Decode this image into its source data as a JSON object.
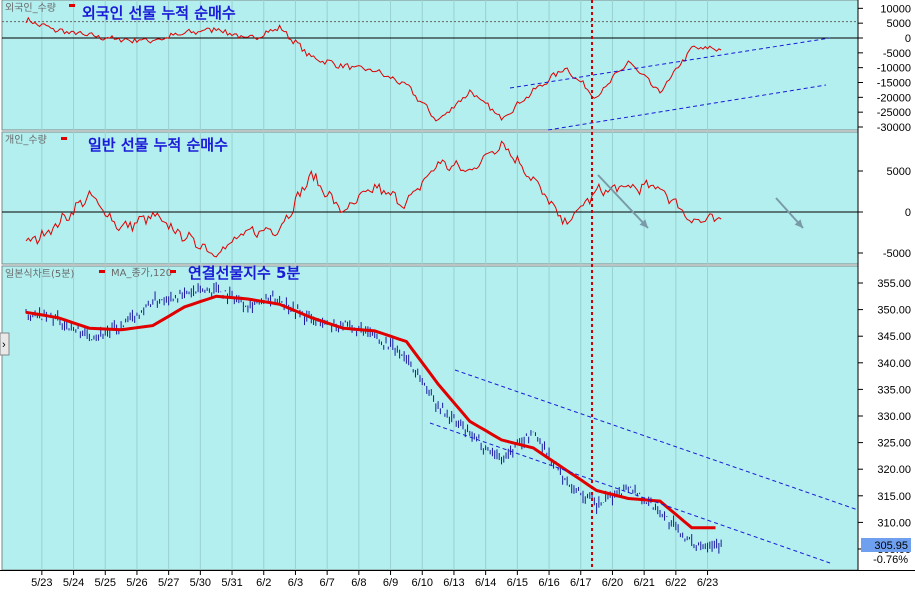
{
  "panels": [
    {
      "id": "foreign",
      "name_label": "외국인_수량",
      "title": "외국인 선물 누적 순매수",
      "y_ticks": [
        "10000",
        "5000",
        "0",
        "-5000",
        "-10000",
        "-15000",
        "-20000",
        "-25000",
        "-30000"
      ],
      "ylim": [
        -31000,
        11500
      ],
      "zero_line": 0,
      "dotted_ref": 5500
    },
    {
      "id": "individual",
      "name_label": "개인_수량",
      "title": "일반 선물 누적 순매수",
      "y_ticks": [
        "5000",
        "0",
        "-5000"
      ],
      "ylim": [
        -6000,
        10000
      ],
      "zero_line": 0
    },
    {
      "id": "price",
      "name_label": "일본식차트(5분)",
      "ma_label": "MA_종가,120",
      "title": "연결선물지수 5분",
      "y_ticks": [
        "355.00",
        "350.00",
        "345.00",
        "340.00",
        "335.00",
        "330.00",
        "325.00",
        "320.00",
        "315.00",
        "310.00",
        "305.00"
      ],
      "ylim": [
        301.5,
        358
      ],
      "last_price": "305.95",
      "change_pct": "-0.76%"
    }
  ],
  "x_labels": [
    "5/23",
    "5/24",
    "5/25",
    "5/26",
    "5/27",
    "5/30",
    "5/31",
    "6/2",
    "6/3",
    "6/7",
    "6/8",
    "6/9",
    "6/10",
    "6/13",
    "6/14",
    "6/15",
    "6/16",
    "6/17",
    "6/20",
    "6/21",
    "6/22",
    "6/23"
  ],
  "colors": {
    "background": "#b3efef",
    "series_line": "#e00000",
    "ma_line": "#e00000",
    "candles": "#1a1aa0",
    "channel": "#1a1ad8",
    "marker_line": "#d00000",
    "arrow": "#7a9aa8",
    "price_badge": "#6fa0f0"
  },
  "chart_data": [
    {
      "type": "line",
      "title": "외국인 선물 누적 순매수",
      "series": [
        {
          "name": "외국인_수량",
          "x": [
            "5/23",
            "5/24",
            "5/25",
            "5/26",
            "5/27",
            "5/30",
            "5/31",
            "6/2",
            "6/3",
            "6/7",
            "6/8",
            "6/9",
            "6/10",
            "6/13",
            "6/14",
            "6/15",
            "6/16",
            "6/17",
            "6/20",
            "6/21",
            "6/22",
            "6/23"
          ],
          "values": [
            6000,
            2500,
            800,
            -600,
            -800,
            1500,
            3200,
            -500,
            3500,
            -6500,
            -9500,
            -11000,
            -16000,
            -28000,
            -18000,
            -27000,
            -18000,
            -10000,
            -20000,
            -8000,
            -18500,
            -3500
          ]
        }
      ],
      "ylim": [
        -31000,
        11500
      ]
    },
    {
      "type": "line",
      "title": "일반 선물 누적 순매수",
      "series": [
        {
          "name": "개인_수량",
          "x": [
            "5/23",
            "5/24",
            "5/25",
            "5/26",
            "5/27",
            "5/30",
            "5/31",
            "6/2",
            "6/3",
            "6/7",
            "6/8",
            "6/9",
            "6/10",
            "6/13",
            "6/14",
            "6/15",
            "6/16",
            "6/17",
            "6/20",
            "6/21",
            "6/22",
            "6/23"
          ],
          "values": [
            -4000,
            -1500,
            2000,
            -2000,
            -500,
            -3000,
            -5000,
            -2500,
            -2000,
            4500,
            0,
            3000,
            1000,
            6000,
            5000,
            8500,
            4000,
            -1500,
            2500,
            3000,
            3000,
            -1000
          ]
        }
      ],
      "ylim": [
        -6000,
        10000
      ]
    },
    {
      "type": "line",
      "title": "연결선물지수 5분",
      "series": [
        {
          "name": "일본식차트(5분)",
          "x": [
            "5/23",
            "5/24",
            "5/25",
            "5/26",
            "5/27",
            "5/30",
            "5/31",
            "6/2",
            "6/3",
            "6/7",
            "6/8",
            "6/9",
            "6/10",
            "6/13",
            "6/14",
            "6/15",
            "6/16",
            "6/17",
            "6/20",
            "6/21",
            "6/22",
            "6/23"
          ],
          "values": [
            349.5,
            348,
            345,
            346.5,
            351.5,
            353,
            354,
            351,
            352,
            348,
            347,
            345,
            341,
            332,
            326.5,
            322,
            327,
            318,
            313,
            317,
            312,
            306
          ]
        },
        {
          "name": "MA_종가,120",
          "x": [
            "5/23",
            "5/24",
            "5/25",
            "5/26",
            "5/27",
            "5/30",
            "5/31",
            "6/2",
            "6/3",
            "6/7",
            "6/8",
            "6/9",
            "6/10",
            "6/13",
            "6/14",
            "6/15",
            "6/16",
            "6/17",
            "6/20",
            "6/21",
            "6/22",
            "6/23"
          ],
          "values": [
            349.5,
            348.5,
            346.5,
            346.2,
            347,
            350.5,
            352.5,
            352,
            351,
            348.5,
            346.5,
            346,
            344,
            336,
            329,
            325.5,
            324,
            320,
            316,
            314.5,
            314,
            309
          ]
        }
      ],
      "ylim": [
        301.5,
        358
      ]
    }
  ]
}
